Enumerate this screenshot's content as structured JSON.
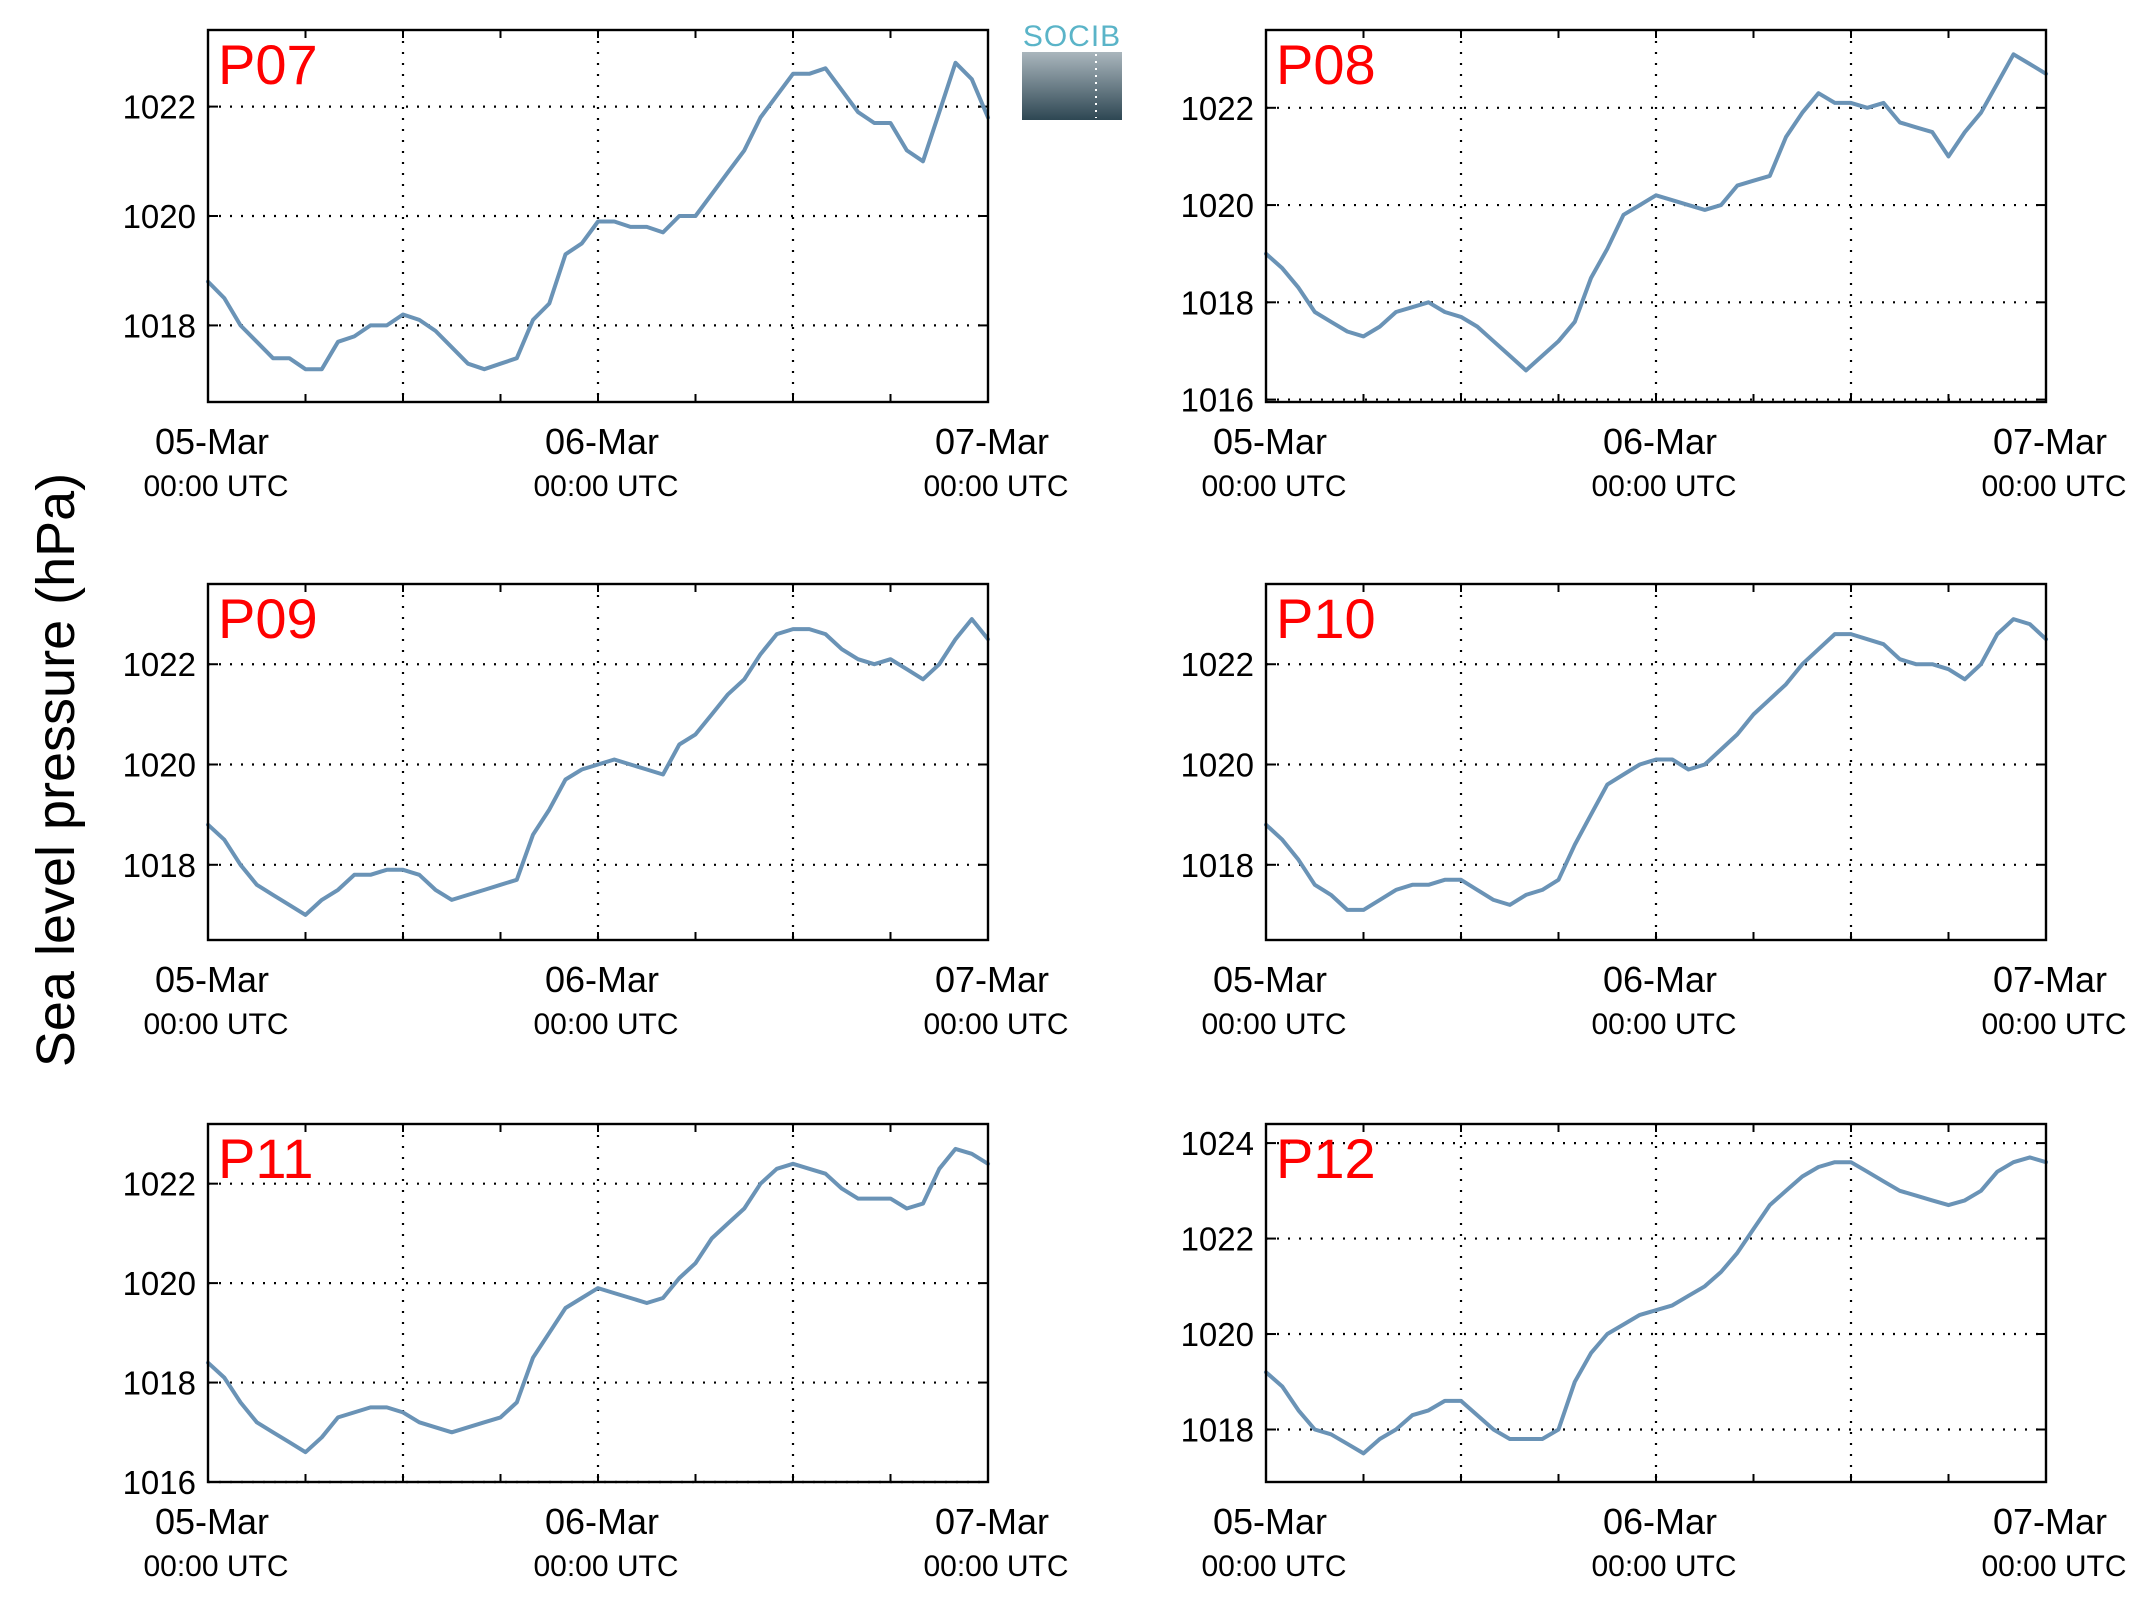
{
  "figure": {
    "ylabel": "Sea level pressure (hPa)",
    "logo_text": "SOCIB",
    "colors": {
      "line": "#6a93b6",
      "title": "#ff0000",
      "logo_text": "#5ab4c8",
      "logo_top": "#aab6bd",
      "logo_bottom": "#2e4753"
    }
  },
  "chart_data": [
    {
      "type": "line",
      "title": "P07",
      "ylim": [
        1016.6,
        1023.4
      ],
      "yticks": [
        1018,
        1020,
        1022
      ],
      "xlim": [
        0,
        48
      ],
      "xtick_labels": [
        {
          "date": "05-Mar",
          "time": "00:00 UTC"
        },
        {
          "date": "06-Mar",
          "time": "00:00 UTC"
        },
        {
          "date": "07-Mar",
          "time": "00:00 UTC"
        }
      ],
      "grid": true,
      "x_hours": [
        0,
        1,
        2,
        3,
        4,
        5,
        6,
        7,
        8,
        9,
        10,
        11,
        12,
        13,
        14,
        15,
        16,
        17,
        18,
        19,
        20,
        21,
        22,
        23,
        24,
        25,
        26,
        27,
        28,
        29,
        30,
        31,
        32,
        33,
        34,
        35,
        36,
        37,
        38,
        39,
        40,
        41,
        42,
        43,
        44,
        45,
        46,
        47,
        48
      ],
      "values": [
        1018.8,
        1018.5,
        1018.0,
        1017.7,
        1017.4,
        1017.4,
        1017.2,
        1017.2,
        1017.7,
        1017.8,
        1018.0,
        1018.0,
        1018.2,
        1018.1,
        1017.9,
        1017.6,
        1017.3,
        1017.2,
        1017.3,
        1017.4,
        1018.1,
        1018.4,
        1019.3,
        1019.5,
        1019.9,
        1019.9,
        1019.8,
        1019.8,
        1019.7,
        1020.0,
        1020.0,
        1020.4,
        1020.8,
        1021.2,
        1021.8,
        1022.2,
        1022.6,
        1022.6,
        1022.7,
        1022.3,
        1021.9,
        1021.7,
        1021.7,
        1021.2,
        1021.0,
        1021.9,
        1022.8,
        1022.5,
        1021.8
      ]
    },
    {
      "type": "line",
      "title": "P08",
      "ylim": [
        1015.95,
        1023.6
      ],
      "yticks": [
        1016,
        1018,
        1020,
        1022
      ],
      "xlim": [
        0,
        48
      ],
      "xtick_labels": [
        {
          "date": "05-Mar",
          "time": "00:00 UTC"
        },
        {
          "date": "06-Mar",
          "time": "00:00 UTC"
        },
        {
          "date": "07-Mar",
          "time": "00:00 UTC"
        }
      ],
      "grid": true,
      "x_hours": [
        0,
        1,
        2,
        3,
        4,
        5,
        6,
        7,
        8,
        9,
        10,
        11,
        12,
        13,
        14,
        15,
        16,
        17,
        18,
        19,
        20,
        21,
        22,
        23,
        24,
        25,
        26,
        27,
        28,
        29,
        30,
        31,
        32,
        33,
        34,
        35,
        36,
        37,
        38,
        39,
        40,
        41,
        42,
        43,
        44,
        45,
        46,
        47,
        48
      ],
      "values": [
        1019.0,
        1018.7,
        1018.3,
        1017.8,
        1017.6,
        1017.4,
        1017.3,
        1017.5,
        1017.8,
        1017.9,
        1018.0,
        1017.8,
        1017.7,
        1017.5,
        1017.2,
        1016.9,
        1016.6,
        1016.9,
        1017.2,
        1017.6,
        1018.5,
        1019.1,
        1019.8,
        1020.0,
        1020.2,
        1020.1,
        1020.0,
        1019.9,
        1020.0,
        1020.4,
        1020.5,
        1020.6,
        1021.4,
        1021.9,
        1022.3,
        1022.1,
        1022.1,
        1022.0,
        1022.1,
        1021.7,
        1021.6,
        1021.5,
        1021.0,
        1021.5,
        1021.9,
        1022.5,
        1023.1,
        1022.9,
        1022.7
      ]
    },
    {
      "type": "line",
      "title": "P09",
      "ylim": [
        1016.5,
        1023.6
      ],
      "yticks": [
        1018,
        1020,
        1022
      ],
      "xlim": [
        0,
        48
      ],
      "xtick_labels": [
        {
          "date": "05-Mar",
          "time": "00:00 UTC"
        },
        {
          "date": "06-Mar",
          "time": "00:00 UTC"
        },
        {
          "date": "07-Mar",
          "time": "00:00 UTC"
        }
      ],
      "grid": true,
      "x_hours": [
        0,
        1,
        2,
        3,
        4,
        5,
        6,
        7,
        8,
        9,
        10,
        11,
        12,
        13,
        14,
        15,
        16,
        17,
        18,
        19,
        20,
        21,
        22,
        23,
        24,
        25,
        26,
        27,
        28,
        29,
        30,
        31,
        32,
        33,
        34,
        35,
        36,
        37,
        38,
        39,
        40,
        41,
        42,
        43,
        44,
        45,
        46,
        47,
        48
      ],
      "values": [
        1018.8,
        1018.5,
        1018.0,
        1017.6,
        1017.4,
        1017.2,
        1017.0,
        1017.3,
        1017.5,
        1017.8,
        1017.8,
        1017.9,
        1017.9,
        1017.8,
        1017.5,
        1017.3,
        1017.4,
        1017.5,
        1017.6,
        1017.7,
        1018.6,
        1019.1,
        1019.7,
        1019.9,
        1020.0,
        1020.1,
        1020.0,
        1019.9,
        1019.8,
        1020.4,
        1020.6,
        1021.0,
        1021.4,
        1021.7,
        1022.2,
        1022.6,
        1022.7,
        1022.7,
        1022.6,
        1022.3,
        1022.1,
        1022.0,
        1022.1,
        1021.9,
        1021.7,
        1022.0,
        1022.5,
        1022.9,
        1022.5
      ]
    },
    {
      "type": "line",
      "title": "P10",
      "ylim": [
        1016.5,
        1023.6
      ],
      "yticks": [
        1018,
        1020,
        1022
      ],
      "xlim": [
        0,
        48
      ],
      "xtick_labels": [
        {
          "date": "05-Mar",
          "time": "00:00 UTC"
        },
        {
          "date": "06-Mar",
          "time": "00:00 UTC"
        },
        {
          "date": "07-Mar",
          "time": "00:00 UTC"
        }
      ],
      "grid": true,
      "x_hours": [
        0,
        1,
        2,
        3,
        4,
        5,
        6,
        7,
        8,
        9,
        10,
        11,
        12,
        13,
        14,
        15,
        16,
        17,
        18,
        19,
        20,
        21,
        22,
        23,
        24,
        25,
        26,
        27,
        28,
        29,
        30,
        31,
        32,
        33,
        34,
        35,
        36,
        37,
        38,
        39,
        40,
        41,
        42,
        43,
        44,
        45,
        46,
        47,
        48
      ],
      "values": [
        1018.8,
        1018.5,
        1018.1,
        1017.6,
        1017.4,
        1017.1,
        1017.1,
        1017.3,
        1017.5,
        1017.6,
        1017.6,
        1017.7,
        1017.7,
        1017.5,
        1017.3,
        1017.2,
        1017.4,
        1017.5,
        1017.7,
        1018.4,
        1019.0,
        1019.6,
        1019.8,
        1020.0,
        1020.1,
        1020.1,
        1019.9,
        1020.0,
        1020.3,
        1020.6,
        1021.0,
        1021.3,
        1021.6,
        1022.0,
        1022.3,
        1022.6,
        1022.6,
        1022.5,
        1022.4,
        1022.1,
        1022.0,
        1022.0,
        1021.9,
        1021.7,
        1022.0,
        1022.6,
        1022.9,
        1022.8,
        1022.5
      ]
    },
    {
      "type": "line",
      "title": "P11",
      "ylim": [
        1016.0,
        1023.2
      ],
      "yticks": [
        1016,
        1018,
        1020,
        1022
      ],
      "xlim": [
        0,
        48
      ],
      "xtick_labels": [
        {
          "date": "05-Mar",
          "time": "00:00 UTC"
        },
        {
          "date": "06-Mar",
          "time": "00:00 UTC"
        },
        {
          "date": "07-Mar",
          "time": "00:00 UTC"
        }
      ],
      "grid": true,
      "x_hours": [
        0,
        1,
        2,
        3,
        4,
        5,
        6,
        7,
        8,
        9,
        10,
        11,
        12,
        13,
        14,
        15,
        16,
        17,
        18,
        19,
        20,
        21,
        22,
        23,
        24,
        25,
        26,
        27,
        28,
        29,
        30,
        31,
        32,
        33,
        34,
        35,
        36,
        37,
        38,
        39,
        40,
        41,
        42,
        43,
        44,
        45,
        46,
        47,
        48
      ],
      "values": [
        1018.4,
        1018.1,
        1017.6,
        1017.2,
        1017.0,
        1016.8,
        1016.6,
        1016.9,
        1017.3,
        1017.4,
        1017.5,
        1017.5,
        1017.4,
        1017.2,
        1017.1,
        1017.0,
        1017.1,
        1017.2,
        1017.3,
        1017.6,
        1018.5,
        1019.0,
        1019.5,
        1019.7,
        1019.9,
        1019.8,
        1019.7,
        1019.6,
        1019.7,
        1020.1,
        1020.4,
        1020.9,
        1021.2,
        1021.5,
        1022.0,
        1022.3,
        1022.4,
        1022.3,
        1022.2,
        1021.9,
        1021.7,
        1021.7,
        1021.7,
        1021.5,
        1021.6,
        1022.3,
        1022.7,
        1022.6,
        1022.4
      ]
    },
    {
      "type": "line",
      "title": "P12",
      "ylim": [
        1016.9,
        1024.4
      ],
      "yticks": [
        1018,
        1020,
        1022,
        1024
      ],
      "xlim": [
        0,
        48
      ],
      "xtick_labels": [
        {
          "date": "05-Mar",
          "time": "00:00 UTC"
        },
        {
          "date": "06-Mar",
          "time": "00:00 UTC"
        },
        {
          "date": "07-Mar",
          "time": "00:00 UTC"
        }
      ],
      "grid": true,
      "x_hours": [
        0,
        1,
        2,
        3,
        4,
        5,
        6,
        7,
        8,
        9,
        10,
        11,
        12,
        13,
        14,
        15,
        16,
        17,
        18,
        19,
        20,
        21,
        22,
        23,
        24,
        25,
        26,
        27,
        28,
        29,
        30,
        31,
        32,
        33,
        34,
        35,
        36,
        37,
        38,
        39,
        40,
        41,
        42,
        43,
        44,
        45,
        46,
        47,
        48
      ],
      "values": [
        1019.2,
        1018.9,
        1018.4,
        1018.0,
        1017.9,
        1017.7,
        1017.5,
        1017.8,
        1018.0,
        1018.3,
        1018.4,
        1018.6,
        1018.6,
        1018.3,
        1018.0,
        1017.8,
        1017.8,
        1017.8,
        1018.0,
        1019.0,
        1019.6,
        1020.0,
        1020.2,
        1020.4,
        1020.5,
        1020.6,
        1020.8,
        1021.0,
        1021.3,
        1021.7,
        1022.2,
        1022.7,
        1023.0,
        1023.3,
        1023.5,
        1023.6,
        1023.6,
        1023.4,
        1023.2,
        1023.0,
        1022.9,
        1022.8,
        1022.7,
        1022.8,
        1023.0,
        1023.4,
        1023.6,
        1023.7,
        1023.6
      ]
    }
  ]
}
